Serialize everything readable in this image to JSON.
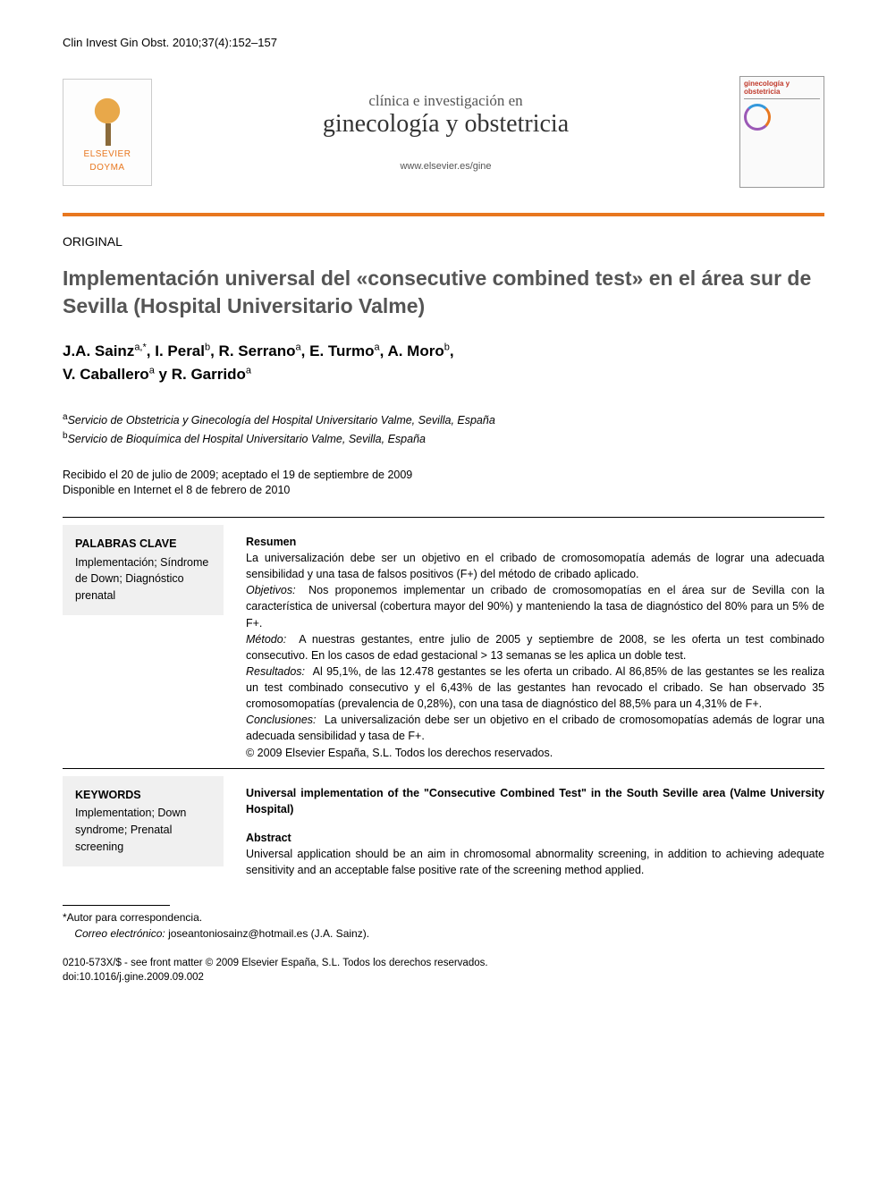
{
  "citation": "Clin Invest Gin Obst. 2010;37(4):152–157",
  "header": {
    "publisher_logo_line1": "ELSEVIER",
    "publisher_logo_line2": "DOYMA",
    "journal_line1": "clínica e investigación en",
    "journal_line2": "ginecología y obstetricia",
    "journal_url": "www.elsevier.es/gine",
    "cover_title": "ginecología y obstetricia"
  },
  "article_type": "ORIGINAL",
  "title": "Implementación universal del «consecutive combined test» en el área sur de Sevilla (Hospital Universitario Valme)",
  "authors_line1": "J.A. Sainz",
  "authors_sup1": "a,",
  "authors_star": "*",
  "authors_line1b": ", I. Peral",
  "authors_sup2": "b",
  "authors_line1c": ", R. Serrano",
  "authors_sup3": "a",
  "authors_line1d": ", E. Turmo",
  "authors_sup4": "a",
  "authors_line1e": ", A. Moro",
  "authors_sup5": "b",
  "authors_line1f": ",",
  "authors_line2a": "V. Caballero",
  "authors_sup6": "a",
  "authors_line2b": " y R. Garrido",
  "authors_sup7": "a",
  "affiliations": {
    "a": "Servicio de Obstetricia y Ginecología del Hospital Universitario Valme, Sevilla, España",
    "b": "Servicio de Bioquímica del Hospital Universitario Valme, Sevilla, España"
  },
  "dates_line1": "Recibido el 20 de julio de 2009; aceptado el 19 de septiembre de 2009",
  "dates_line2": "Disponible en Internet el 8 de febrero de 2010",
  "es_keywords": {
    "head": "PALABRAS CLAVE",
    "items": "Implementación; Síndrome de Down; Diagnóstico prenatal"
  },
  "es_abstract": {
    "head": "Resumen",
    "intro": "La universalización debe ser un objetivo en el cribado de cromosomopatía además de lograr una adecuada sensibilidad y una tasa de falsos positivos (F+) del método de cribado aplicado.",
    "objetivos_label": "Objetivos:",
    "objetivos": "Nos proponemos implementar un cribado de cromosomopatías en el área sur de Sevilla con la característica de universal (cobertura mayor del 90%) y manteniendo la tasa de diagnóstico del 80% para un 5% de F+.",
    "metodo_label": "Método:",
    "metodo": "A nuestras gestantes, entre julio de 2005 y septiembre de 2008, se les oferta un test combinado consecutivo. En los casos de edad gestacional > 13 semanas se les aplica un doble test.",
    "resultados_label": "Resultados:",
    "resultados": "Al 95,1%, de las 12.478 gestantes se les oferta un cribado. Al 86,85% de las gestantes se les realiza un test combinado consecutivo y el 6,43% de las gestantes han revocado el cribado. Se han observado 35 cromosomopatías (prevalencia de 0,28%), con una tasa de diagnóstico del 88,5% para un 4,31% de F+.",
    "conclusiones_label": "Conclusiones:",
    "conclusiones": "La universalización debe ser un objetivo en el cribado de cromosomopatías además de lograr una adecuada sensibilidad y tasa de F+.",
    "copyright": "© 2009 Elsevier España, S.L. Todos los derechos reservados."
  },
  "en_keywords": {
    "head": "KEYWORDS",
    "items": "Implementation; Down syndrome; Prenatal screening"
  },
  "en_abstract": {
    "title": "Universal implementation of the \"Consecutive Combined Test\" in the South Seville area (Valme University Hospital)",
    "head": "Abstract",
    "intro": "Universal application should be an aim in chromosomal abnormality screening, in addition to achieving adequate sensitivity and an acceptable false positive rate of the screening method applied."
  },
  "footnotes": {
    "corr_label": "*Autor para correspondencia.",
    "email_label": "Correo electrónico:",
    "email": "joseantoniosainz@hotmail.es (J.A. Sainz)."
  },
  "footer": {
    "line1": "0210-573X/$ - see front matter © 2009 Elsevier España, S.L. Todos los derechos reservados.",
    "line2": "doi:10.1016/j.gine.2009.09.002"
  },
  "colors": {
    "accent": "#e8771f",
    "title_gray": "#555555",
    "keyword_bg": "#f0f0f0"
  }
}
